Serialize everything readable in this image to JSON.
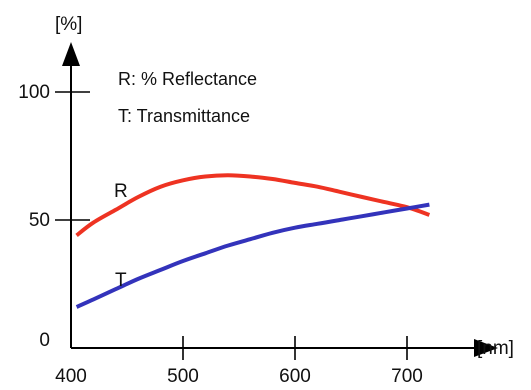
{
  "chart_data": {
    "type": "line",
    "xlabel": "[nm]",
    "ylabel": "[%]",
    "xlim": [
      400,
      730
    ],
    "ylim": [
      0,
      100
    ],
    "x_ticks": [
      400,
      500,
      600,
      700
    ],
    "y_ticks": [
      0,
      50,
      100
    ],
    "legend": [
      "R: % Reflectance",
      "T: Transmittance"
    ],
    "legend_position": "top-left",
    "grid": false,
    "series": [
      {
        "name": "R",
        "color": "#ee3322",
        "x": [
          405,
          420,
          440,
          460,
          480,
          500,
          520,
          540,
          560,
          580,
          600,
          620,
          640,
          660,
          680,
          700,
          720
        ],
        "y": [
          44,
          49,
          54,
          59,
          63,
          65.5,
          67,
          67.5,
          67,
          66,
          64.5,
          63,
          61,
          59,
          57,
          55,
          52
        ]
      },
      {
        "name": "T",
        "color": "#3333bb",
        "x": [
          405,
          420,
          440,
          460,
          480,
          500,
          520,
          540,
          560,
          580,
          600,
          620,
          640,
          660,
          680,
          700,
          720
        ],
        "y": [
          16,
          19,
          23,
          27,
          30.5,
          34,
          37,
          40,
          42.5,
          45,
          47,
          48.5,
          50,
          51.5,
          53,
          54.5,
          56
        ]
      }
    ]
  }
}
